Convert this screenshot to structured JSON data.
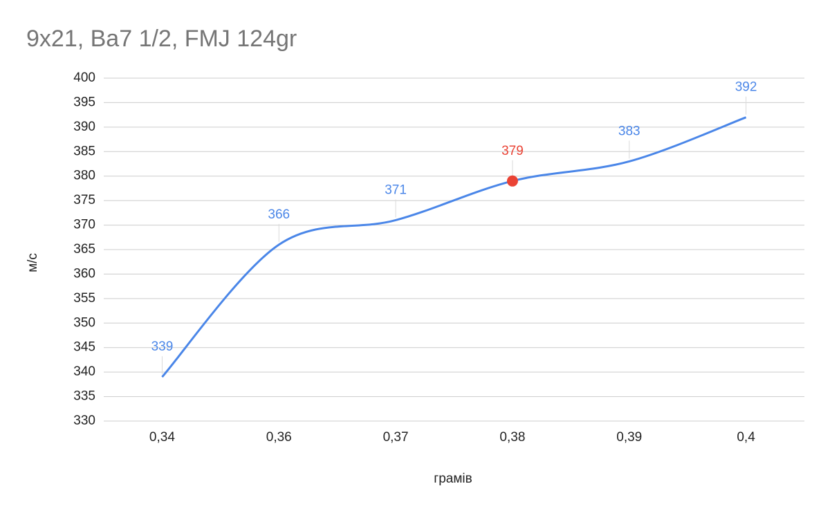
{
  "chart_data": {
    "type": "line",
    "title": "9x21, Ba7 1/2, FMJ 124gr",
    "x_label": "грамів",
    "y_label": "м/с",
    "categories": [
      "0,34",
      "0,36",
      "0,37",
      "0,38",
      "0,39",
      "0,4"
    ],
    "values": [
      339,
      366,
      371,
      379,
      383,
      392
    ],
    "color": "#4a86e8",
    "highlight": {
      "index": 3,
      "color": "#ea4335"
    },
    "ylim": [
      330,
      400
    ],
    "yticks": [
      330,
      335,
      340,
      345,
      350,
      355,
      360,
      365,
      370,
      375,
      380,
      385,
      390,
      395,
      400
    ],
    "grid": true,
    "smooth": true
  }
}
